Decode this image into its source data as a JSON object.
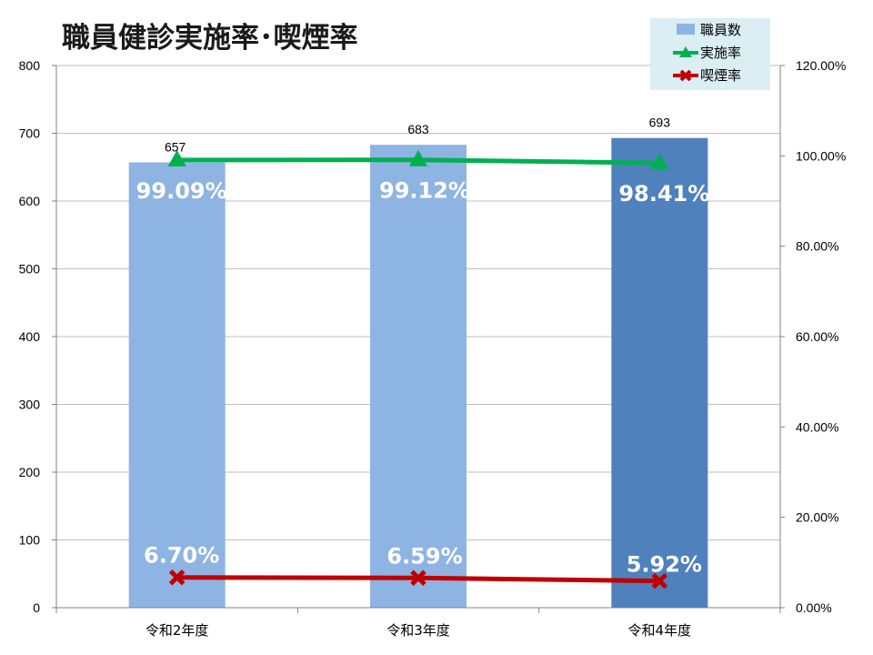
{
  "chart_data": {
    "type": "bar",
    "title": "職員健診実施率･喫煙率",
    "categories": [
      "令和2年度",
      "令和3年度",
      "令和4年度"
    ],
    "series": [
      {
        "name": "職員数",
        "kind": "bar",
        "axis": "left",
        "values": [
          657,
          683,
          693
        ],
        "value_labels": [
          "657",
          "683",
          "693"
        ],
        "colors": [
          "#8EB4E3",
          "#8EB4E3",
          "#4F81BD"
        ]
      },
      {
        "name": "実施率",
        "kind": "line",
        "axis": "right",
        "marker": "triangle",
        "color": "#00B050",
        "values": [
          99.09,
          99.12,
          98.41
        ],
        "value_labels": [
          "99.09%",
          "99.12%",
          "98.41%"
        ]
      },
      {
        "name": "喫煙率",
        "kind": "line",
        "axis": "right",
        "marker": "x",
        "color": "#C00000",
        "values": [
          6.7,
          6.59,
          5.92
        ],
        "value_labels": [
          "6.70%",
          "6.59%",
          "5.92%"
        ]
      }
    ],
    "ylim": [
      0,
      800
    ],
    "yticks": [
      "0",
      "100",
      "200",
      "300",
      "400",
      "500",
      "600",
      "700",
      "800"
    ],
    "y2lim": [
      0,
      120
    ],
    "y2ticks": [
      "0.00%",
      "20.00%",
      "40.00%",
      "60.00%",
      "80.00%",
      "100.00%",
      "120.00%"
    ],
    "grid": "horizontal",
    "legend_position": "top-right",
    "legend_bg": "#DAEEF3"
  }
}
